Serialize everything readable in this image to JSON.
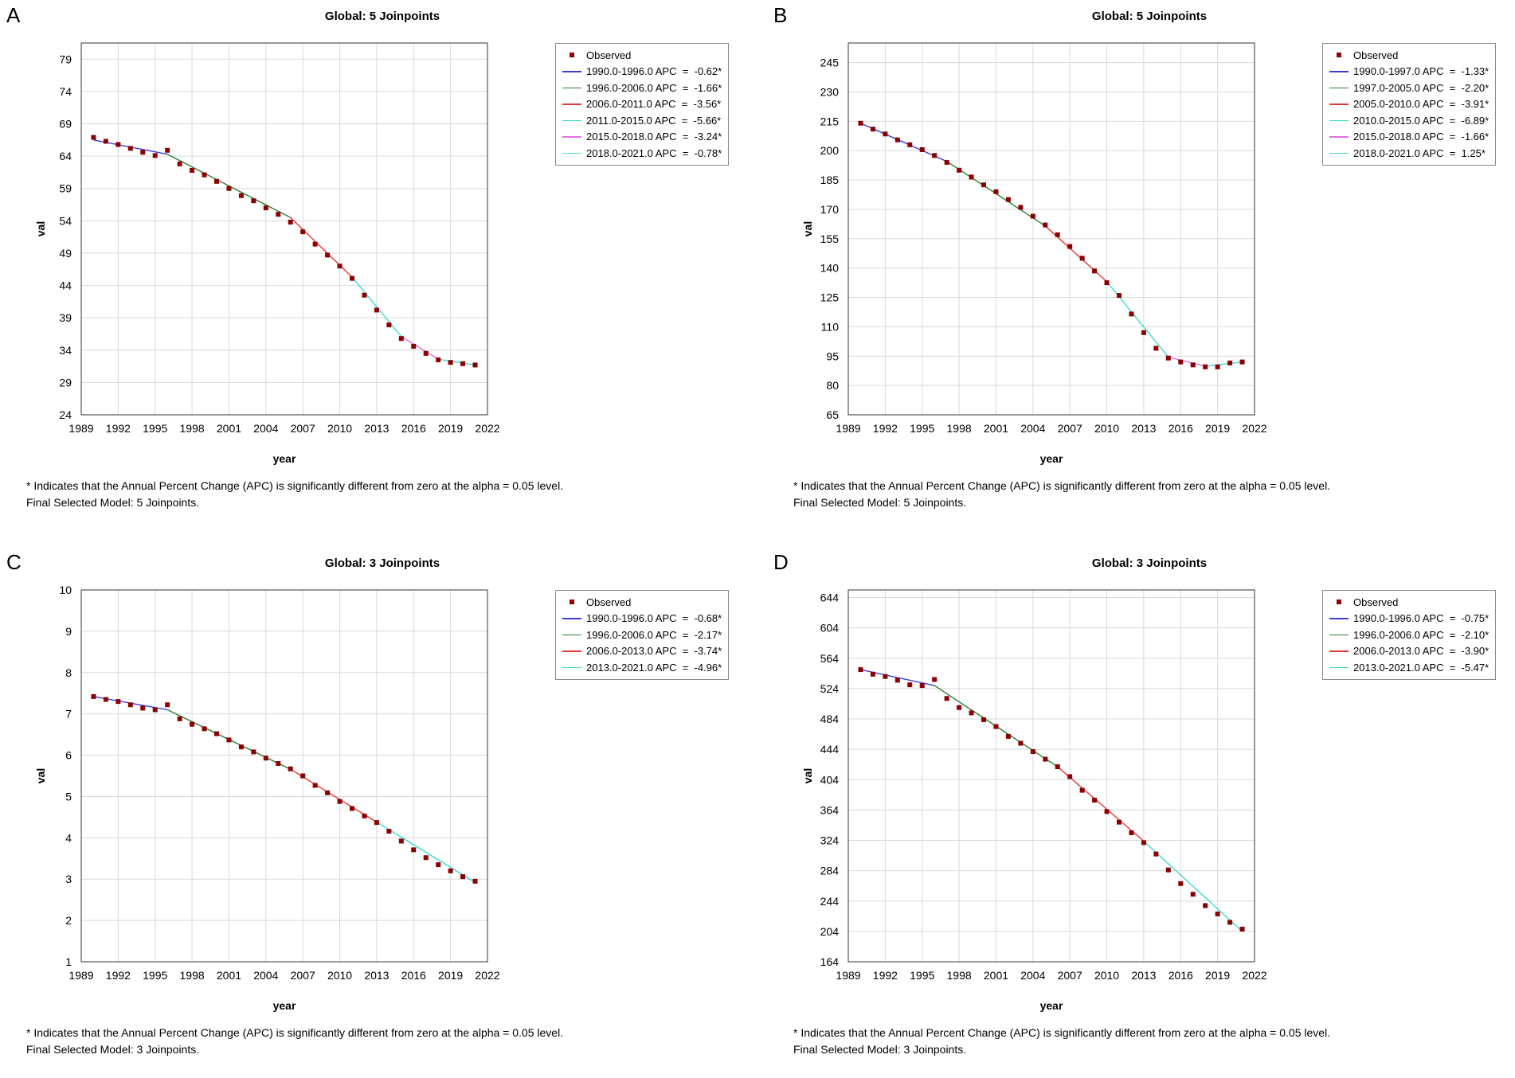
{
  "footnote_text": "* Indicates that the Annual Percent Change (APC) is significantly different from zero at the alpha = 0.05 level.",
  "chart_data": [
    {
      "panel": "A",
      "type": "line",
      "title": "Global: 5 Joinpoints",
      "xlabel": "year",
      "ylabel": "val",
      "xlim": [
        1989,
        2022
      ],
      "xticks": [
        1989,
        1992,
        1995,
        1998,
        2001,
        2004,
        2007,
        2010,
        2013,
        2016,
        2019,
        2022
      ],
      "ylim": [
        24,
        81.5
      ],
      "yticks": [
        24,
        29,
        34,
        39,
        44,
        49,
        54,
        59,
        64,
        69,
        74,
        79
      ],
      "grid": true,
      "legend_position": "right",
      "observed_label": "Observed",
      "observed": {
        "x": [
          1990,
          1991,
          1992,
          1993,
          1994,
          1995,
          1996,
          1997,
          1998,
          1999,
          2000,
          2001,
          2002,
          2003,
          2004,
          2005,
          2006,
          2007,
          2008,
          2009,
          2010,
          2011,
          2012,
          2013,
          2014,
          2015,
          2016,
          2017,
          2018,
          2019,
          2020,
          2021
        ],
        "y": [
          66.9,
          66.3,
          65.8,
          65.2,
          64.6,
          64.1,
          64.9,
          62.8,
          61.8,
          61.1,
          60.1,
          59.0,
          57.9,
          57.1,
          56.0,
          55.0,
          53.8,
          52.3,
          50.4,
          48.7,
          47.0,
          45.1,
          42.5,
          40.2,
          37.9,
          35.8,
          34.6,
          33.5,
          32.5,
          32.1,
          31.9,
          31.7
        ]
      },
      "series": [
        {
          "name": "1990.0-1996.0 APC  =  -0.62*",
          "color": "#3b3bd6",
          "x": [
            1990,
            1996
          ],
          "y": [
            66.5,
            64.3
          ]
        },
        {
          "name": "1996.0-2006.0 APC  =  -1.66*",
          "color": "#2e7d32",
          "x": [
            1996,
            2006
          ],
          "y": [
            64.3,
            54.5
          ]
        },
        {
          "name": "2006.0-2011.0 APC  =  -3.56*",
          "color": "#e53935",
          "x": [
            2006,
            2011
          ],
          "y": [
            54.5,
            45.3
          ]
        },
        {
          "name": "2011.0-2015.0 APC  =  -5.66*",
          "color": "#40d8d0",
          "x": [
            2011,
            2015
          ],
          "y": [
            45.3,
            36.1
          ]
        },
        {
          "name": "2015.0-2018.0 APC  =  -3.24*",
          "color": "#e070e0",
          "x": [
            2015,
            2018
          ],
          "y": [
            36.1,
            32.6
          ]
        },
        {
          "name": "2018.0-2021.0 APC  =  -0.78*",
          "color": "#40d8d0",
          "x": [
            2018,
            2021
          ],
          "y": [
            32.6,
            31.7
          ]
        }
      ],
      "final_model": "Final Selected Model: 5 Joinpoints."
    },
    {
      "panel": "B",
      "type": "line",
      "title": "Global: 5 Joinpoints",
      "xlabel": "year",
      "ylabel": "val",
      "xlim": [
        1989,
        2022
      ],
      "xticks": [
        1989,
        1992,
        1995,
        1998,
        2001,
        2004,
        2007,
        2010,
        2013,
        2016,
        2019,
        2022
      ],
      "ylim": [
        65,
        255
      ],
      "yticks": [
        65,
        80,
        95,
        110,
        125,
        140,
        155,
        170,
        185,
        200,
        215,
        230,
        245
      ],
      "grid": true,
      "legend_position": "right",
      "observed_label": "Observed",
      "observed": {
        "x": [
          1990,
          1991,
          1992,
          1993,
          1994,
          1995,
          1996,
          1997,
          1998,
          1999,
          2000,
          2001,
          2002,
          2003,
          2004,
          2005,
          2006,
          2007,
          2008,
          2009,
          2010,
          2011,
          2012,
          2013,
          2014,
          2015,
          2016,
          2017,
          2018,
          2019,
          2020,
          2021
        ],
        "y": [
          214.0,
          211.0,
          208.5,
          205.5,
          203.0,
          200.5,
          197.5,
          194.0,
          190.0,
          186.5,
          182.5,
          179.0,
          175.0,
          171.0,
          166.5,
          162.0,
          157.0,
          151.0,
          145.0,
          138.5,
          132.5,
          126.0,
          116.5,
          107.0,
          99.0,
          94.0,
          92.0,
          90.5,
          89.5,
          89.5,
          91.5,
          92.0
        ]
      },
      "series": [
        {
          "name": "1990.0-1997.0 APC  =  -1.33*",
          "color": "#3b3bd6",
          "x": [
            1990,
            1997
          ],
          "y": [
            214.0,
            194.5
          ]
        },
        {
          "name": "1997.0-2005.0 APC  =  -2.20*",
          "color": "#2e7d32",
          "x": [
            1997,
            2005
          ],
          "y": [
            194.5,
            161.5
          ]
        },
        {
          "name": "2005.0-2010.0 APC  =  -3.91*",
          "color": "#e53935",
          "x": [
            2005,
            2010
          ],
          "y": [
            161.5,
            133.0
          ]
        },
        {
          "name": "2010.0-2015.0 APC  =  -6.89*",
          "color": "#40d8d0",
          "x": [
            2010,
            2015
          ],
          "y": [
            133.0,
            94.5
          ]
        },
        {
          "name": "2015.0-2018.0 APC  =  -1.66*",
          "color": "#e070e0",
          "x": [
            2015,
            2018
          ],
          "y": [
            94.5,
            89.8
          ]
        },
        {
          "name": "2018.0-2021.0 APC  =  1.25*",
          "color": "#40d8d0",
          "x": [
            2018,
            2021
          ],
          "y": [
            89.8,
            92.0
          ]
        }
      ],
      "final_model": "Final Selected Model: 5 Joinpoints."
    },
    {
      "panel": "C",
      "type": "line",
      "title": "Global: 3 Joinpoints",
      "xlabel": "year",
      "ylabel": "val",
      "xlim": [
        1989,
        2022
      ],
      "xticks": [
        1989,
        1992,
        1995,
        1998,
        2001,
        2004,
        2007,
        2010,
        2013,
        2016,
        2019,
        2022
      ],
      "ylim": [
        1,
        10
      ],
      "yticks": [
        1,
        2,
        3,
        4,
        5,
        6,
        7,
        8,
        9,
        10
      ],
      "grid": true,
      "legend_position": "right",
      "observed_label": "Observed",
      "observed": {
        "x": [
          1990,
          1991,
          1992,
          1993,
          1994,
          1995,
          1996,
          1997,
          1998,
          1999,
          2000,
          2001,
          2002,
          2003,
          2004,
          2005,
          2006,
          2007,
          2008,
          2009,
          2010,
          2011,
          2012,
          2013,
          2014,
          2015,
          2016,
          2017,
          2018,
          2019,
          2020,
          2021
        ],
        "y": [
          7.42,
          7.35,
          7.3,
          7.22,
          7.14,
          7.1,
          7.22,
          6.88,
          6.75,
          6.64,
          6.52,
          6.37,
          6.2,
          6.08,
          5.93,
          5.8,
          5.67,
          5.5,
          5.27,
          5.09,
          4.88,
          4.71,
          4.53,
          4.37,
          4.16,
          3.92,
          3.71,
          3.52,
          3.35,
          3.2,
          3.06,
          2.95
        ]
      },
      "series": [
        {
          "name": "1990.0-1996.0 APC  =  -0.68*",
          "color": "#3b3bd6",
          "x": [
            1990,
            1996
          ],
          "y": [
            7.42,
            7.1
          ]
        },
        {
          "name": "1996.0-2006.0 APC  =  -2.17*",
          "color": "#2e7d32",
          "x": [
            1996,
            2006
          ],
          "y": [
            7.1,
            5.66
          ]
        },
        {
          "name": "2006.0-2013.0 APC  =  -3.74*",
          "color": "#e53935",
          "x": [
            2006,
            2013
          ],
          "y": [
            5.66,
            4.38
          ]
        },
        {
          "name": "2013.0-2021.0 APC  =  -4.96*",
          "color": "#40d8d0",
          "x": [
            2013,
            2021
          ],
          "y": [
            4.38,
            2.92
          ]
        }
      ],
      "final_model": "Final Selected Model: 3 Joinpoints."
    },
    {
      "panel": "D",
      "type": "line",
      "title": "Global: 3 Joinpoints",
      "xlabel": "year",
      "ylabel": "val",
      "xlim": [
        1989,
        2022
      ],
      "xticks": [
        1989,
        1992,
        1995,
        1998,
        2001,
        2004,
        2007,
        2010,
        2013,
        2016,
        2019,
        2022
      ],
      "ylim": [
        164,
        654
      ],
      "yticks": [
        164,
        204,
        244,
        284,
        324,
        364,
        404,
        444,
        484,
        524,
        564,
        604,
        644
      ],
      "grid": true,
      "legend_position": "right",
      "observed_label": "Observed",
      "observed": {
        "x": [
          1990,
          1991,
          1992,
          1993,
          1994,
          1995,
          1996,
          1997,
          1998,
          1999,
          2000,
          2001,
          2002,
          2003,
          2004,
          2005,
          2006,
          2007,
          2008,
          2009,
          2010,
          2011,
          2012,
          2013,
          2014,
          2015,
          2016,
          2017,
          2018,
          2019,
          2020,
          2021
        ],
        "y": [
          549,
          543,
          540,
          535,
          529,
          528,
          536,
          511,
          499,
          492,
          483,
          474,
          461,
          452,
          441,
          431,
          421,
          408,
          390,
          377,
          362,
          348,
          334,
          321,
          306,
          285,
          267,
          253,
          238,
          227,
          216,
          207
        ]
      },
      "series": [
        {
          "name": "1990.0-1996.0 APC  =  -0.75*",
          "color": "#3b3bd6",
          "x": [
            1990,
            1996
          ],
          "y": [
            549,
            528
          ]
        },
        {
          "name": "1996.0-2006.0 APC  =  -2.10*",
          "color": "#2e7d32",
          "x": [
            1996,
            2006
          ],
          "y": [
            528,
            421
          ]
        },
        {
          "name": "2006.0-2013.0 APC  =  -3.90*",
          "color": "#e53935",
          "x": [
            2006,
            2013
          ],
          "y": [
            421,
            323
          ]
        },
        {
          "name": "2013.0-2021.0 APC  =  -5.47*",
          "color": "#40d8d0",
          "x": [
            2013,
            2021
          ],
          "y": [
            323,
            204
          ]
        }
      ],
      "final_model": "Final Selected Model: 3 Joinpoints."
    }
  ]
}
